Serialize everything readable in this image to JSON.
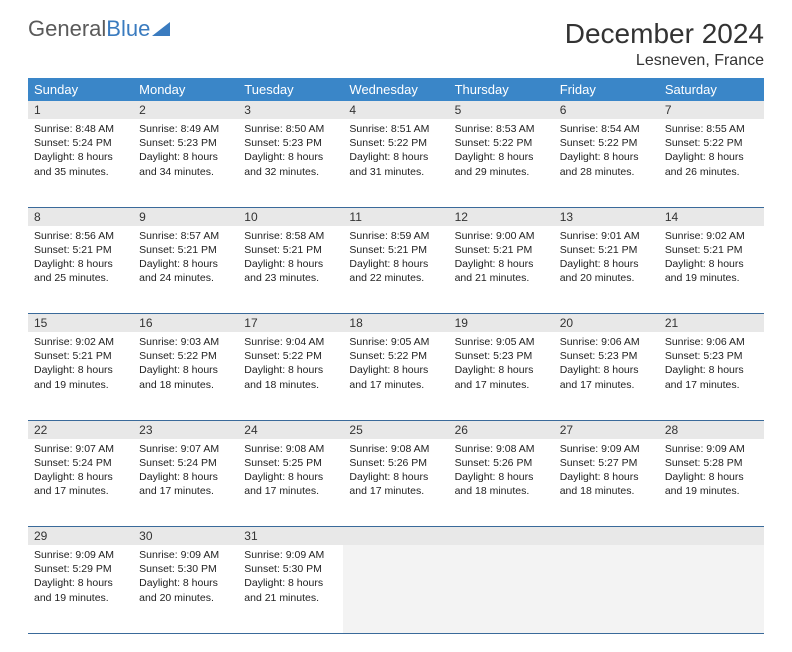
{
  "logo": {
    "text_gray": "General",
    "text_blue": "Blue"
  },
  "header": {
    "month": "December 2024",
    "location": "Lesneven, France"
  },
  "colors": {
    "header_bg": "#3a86c8",
    "header_fg": "#ffffff",
    "daynum_bg": "#e8e8e8",
    "border": "#3a6a9a",
    "logo_gray": "#5a5a5a",
    "logo_blue": "#3a7bbf"
  },
  "weekdays": [
    "Sunday",
    "Monday",
    "Tuesday",
    "Wednesday",
    "Thursday",
    "Friday",
    "Saturday"
  ],
  "weeks": [
    [
      {
        "n": "1",
        "sr": "8:48 AM",
        "ss": "5:24 PM",
        "dl": "8 hours and 35 minutes."
      },
      {
        "n": "2",
        "sr": "8:49 AM",
        "ss": "5:23 PM",
        "dl": "8 hours and 34 minutes."
      },
      {
        "n": "3",
        "sr": "8:50 AM",
        "ss": "5:23 PM",
        "dl": "8 hours and 32 minutes."
      },
      {
        "n": "4",
        "sr": "8:51 AM",
        "ss": "5:22 PM",
        "dl": "8 hours and 31 minutes."
      },
      {
        "n": "5",
        "sr": "8:53 AM",
        "ss": "5:22 PM",
        "dl": "8 hours and 29 minutes."
      },
      {
        "n": "6",
        "sr": "8:54 AM",
        "ss": "5:22 PM",
        "dl": "8 hours and 28 minutes."
      },
      {
        "n": "7",
        "sr": "8:55 AM",
        "ss": "5:22 PM",
        "dl": "8 hours and 26 minutes."
      }
    ],
    [
      {
        "n": "8",
        "sr": "8:56 AM",
        "ss": "5:21 PM",
        "dl": "8 hours and 25 minutes."
      },
      {
        "n": "9",
        "sr": "8:57 AM",
        "ss": "5:21 PM",
        "dl": "8 hours and 24 minutes."
      },
      {
        "n": "10",
        "sr": "8:58 AM",
        "ss": "5:21 PM",
        "dl": "8 hours and 23 minutes."
      },
      {
        "n": "11",
        "sr": "8:59 AM",
        "ss": "5:21 PM",
        "dl": "8 hours and 22 minutes."
      },
      {
        "n": "12",
        "sr": "9:00 AM",
        "ss": "5:21 PM",
        "dl": "8 hours and 21 minutes."
      },
      {
        "n": "13",
        "sr": "9:01 AM",
        "ss": "5:21 PM",
        "dl": "8 hours and 20 minutes."
      },
      {
        "n": "14",
        "sr": "9:02 AM",
        "ss": "5:21 PM",
        "dl": "8 hours and 19 minutes."
      }
    ],
    [
      {
        "n": "15",
        "sr": "9:02 AM",
        "ss": "5:21 PM",
        "dl": "8 hours and 19 minutes."
      },
      {
        "n": "16",
        "sr": "9:03 AM",
        "ss": "5:22 PM",
        "dl": "8 hours and 18 minutes."
      },
      {
        "n": "17",
        "sr": "9:04 AM",
        "ss": "5:22 PM",
        "dl": "8 hours and 18 minutes."
      },
      {
        "n": "18",
        "sr": "9:05 AM",
        "ss": "5:22 PM",
        "dl": "8 hours and 17 minutes."
      },
      {
        "n": "19",
        "sr": "9:05 AM",
        "ss": "5:23 PM",
        "dl": "8 hours and 17 minutes."
      },
      {
        "n": "20",
        "sr": "9:06 AM",
        "ss": "5:23 PM",
        "dl": "8 hours and 17 minutes."
      },
      {
        "n": "21",
        "sr": "9:06 AM",
        "ss": "5:23 PM",
        "dl": "8 hours and 17 minutes."
      }
    ],
    [
      {
        "n": "22",
        "sr": "9:07 AM",
        "ss": "5:24 PM",
        "dl": "8 hours and 17 minutes."
      },
      {
        "n": "23",
        "sr": "9:07 AM",
        "ss": "5:24 PM",
        "dl": "8 hours and 17 minutes."
      },
      {
        "n": "24",
        "sr": "9:08 AM",
        "ss": "5:25 PM",
        "dl": "8 hours and 17 minutes."
      },
      {
        "n": "25",
        "sr": "9:08 AM",
        "ss": "5:26 PM",
        "dl": "8 hours and 17 minutes."
      },
      {
        "n": "26",
        "sr": "9:08 AM",
        "ss": "5:26 PM",
        "dl": "8 hours and 18 minutes."
      },
      {
        "n": "27",
        "sr": "9:09 AM",
        "ss": "5:27 PM",
        "dl": "8 hours and 18 minutes."
      },
      {
        "n": "28",
        "sr": "9:09 AM",
        "ss": "5:28 PM",
        "dl": "8 hours and 19 minutes."
      }
    ],
    [
      {
        "n": "29",
        "sr": "9:09 AM",
        "ss": "5:29 PM",
        "dl": "8 hours and 19 minutes."
      },
      {
        "n": "30",
        "sr": "9:09 AM",
        "ss": "5:30 PM",
        "dl": "8 hours and 20 minutes."
      },
      {
        "n": "31",
        "sr": "9:09 AM",
        "ss": "5:30 PM",
        "dl": "8 hours and 21 minutes."
      },
      null,
      null,
      null,
      null
    ]
  ],
  "labels": {
    "sunrise": "Sunrise:",
    "sunset": "Sunset:",
    "daylight": "Daylight:"
  }
}
